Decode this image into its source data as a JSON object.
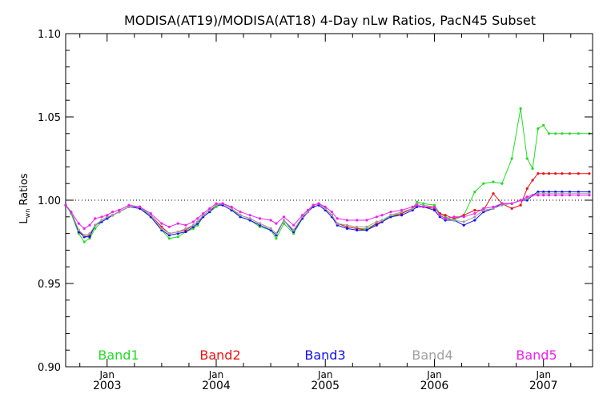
{
  "chart_data": {
    "type": "line",
    "title": "MODISA(AT19)/MODISA(AT18) 4-Day nLw Ratios, PacN45 Subset",
    "xlabel": "",
    "ylabel_main": "L",
    "ylabel_sub": "wn",
    "ylabel_rest": " Ratios",
    "ylim": [
      0.9,
      1.1
    ],
    "xlim": [
      2002.62,
      2007.45
    ],
    "reference_line": 1.0,
    "y_ticks": [
      {
        "value": 0.9,
        "label": "0.90"
      },
      {
        "value": 0.95,
        "label": "0.95"
      },
      {
        "value": 1.0,
        "label": "1.00"
      },
      {
        "value": 1.05,
        "label": "1.05"
      },
      {
        "value": 1.1,
        "label": "1.10"
      }
    ],
    "x_ticks": [
      {
        "value": 2003.0,
        "month": "Jan",
        "year": "2003"
      },
      {
        "value": 2004.0,
        "month": "Jan",
        "year": "2004"
      },
      {
        "value": 2005.0,
        "month": "Jan",
        "year": "2005"
      },
      {
        "value": 2006.0,
        "month": "Jan",
        "year": "2006"
      },
      {
        "value": 2007.0,
        "month": "Jan",
        "year": "2007"
      }
    ],
    "x": [
      2002.62,
      2002.67,
      2002.74,
      2002.79,
      2002.84,
      2002.89,
      2002.95,
      2003.0,
      2003.05,
      2003.11,
      2003.2,
      2003.3,
      2003.4,
      2003.5,
      2003.57,
      2003.65,
      2003.72,
      2003.79,
      2003.83,
      2003.88,
      2003.94,
      2004.0,
      2004.06,
      2004.14,
      2004.22,
      2004.31,
      2004.4,
      2004.5,
      2004.55,
      2004.62,
      2004.71,
      2004.79,
      2004.84,
      2004.89,
      2004.94,
      2005.0,
      2005.06,
      2005.11,
      2005.2,
      2005.29,
      2005.38,
      2005.47,
      2005.52,
      2005.6,
      2005.7,
      2005.8,
      2005.84,
      2005.9,
      2006.0,
      2006.05,
      2006.1,
      2006.18,
      2006.27,
      2006.37,
      2006.45,
      2006.54,
      2006.62,
      2006.71,
      2006.79,
      2006.85,
      2006.9,
      2006.95,
      2007.0,
      2007.05,
      2007.11,
      2007.17,
      2007.24,
      2007.32,
      2007.42
    ],
    "series": [
      {
        "name": "Band1",
        "color": "#22dd22",
        "values": [
          0.997,
          0.992,
          0.98,
          0.975,
          0.977,
          0.983,
          0.987,
          0.989,
          0.991,
          0.993,
          0.996,
          0.996,
          0.99,
          0.982,
          0.977,
          0.978,
          0.981,
          0.983,
          0.985,
          0.99,
          0.993,
          0.996,
          0.998,
          0.995,
          0.99,
          0.988,
          0.984,
          0.982,
          0.977,
          0.986,
          0.98,
          0.989,
          0.993,
          0.997,
          0.998,
          0.995,
          0.991,
          0.986,
          0.984,
          0.983,
          0.983,
          0.986,
          0.987,
          0.991,
          0.992,
          0.995,
          0.999,
          0.998,
          0.997,
          0.992,
          0.99,
          0.988,
          0.991,
          1.005,
          1.01,
          1.011,
          1.01,
          1.025,
          1.055,
          1.025,
          1.019,
          1.043,
          1.045,
          1.04,
          1.04,
          1.04,
          1.04,
          1.04,
          1.04
        ]
      },
      {
        "name": "Band2",
        "color": "#ee1111",
        "values": [
          0.997,
          0.993,
          0.982,
          0.978,
          0.979,
          0.985,
          0.988,
          0.99,
          0.991,
          0.993,
          0.996,
          0.996,
          0.991,
          0.984,
          0.98,
          0.981,
          0.982,
          0.985,
          0.987,
          0.991,
          0.994,
          0.997,
          0.998,
          0.995,
          0.991,
          0.989,
          0.986,
          0.983,
          0.98,
          0.988,
          0.982,
          0.99,
          0.993,
          0.997,
          0.998,
          0.995,
          0.991,
          0.986,
          0.984,
          0.983,
          0.982,
          0.986,
          0.987,
          0.99,
          0.992,
          0.995,
          0.997,
          0.996,
          0.995,
          0.992,
          0.991,
          0.989,
          0.991,
          0.994,
          0.994,
          1.004,
          0.998,
          0.995,
          0.997,
          1.007,
          1.012,
          1.016,
          1.016,
          1.016,
          1.016,
          1.016,
          1.016,
          1.016,
          1.016
        ]
      },
      {
        "name": "Band3",
        "color": "#1111ee",
        "values": [
          0.997,
          0.993,
          0.981,
          0.978,
          0.978,
          0.985,
          0.987,
          0.989,
          0.991,
          0.993,
          0.996,
          0.995,
          0.99,
          0.982,
          0.979,
          0.98,
          0.981,
          0.984,
          0.986,
          0.99,
          0.993,
          0.997,
          0.997,
          0.994,
          0.99,
          0.988,
          0.985,
          0.982,
          0.979,
          0.988,
          0.981,
          0.989,
          0.993,
          0.996,
          0.997,
          0.994,
          0.99,
          0.985,
          0.983,
          0.982,
          0.982,
          0.985,
          0.987,
          0.99,
          0.991,
          0.994,
          0.996,
          0.996,
          0.994,
          0.99,
          0.988,
          0.988,
          0.985,
          0.988,
          0.993,
          0.995,
          0.998,
          0.998,
          1.0,
          1.0,
          1.003,
          1.005,
          1.005,
          1.005,
          1.005,
          1.005,
          1.005,
          1.005,
          1.005
        ]
      },
      {
        "name": "Band4",
        "color": "#a0a0a0",
        "values": [
          0.997,
          0.993,
          0.982,
          0.979,
          0.98,
          0.985,
          0.988,
          0.99,
          0.991,
          0.993,
          0.996,
          0.996,
          0.991,
          0.983,
          0.98,
          0.981,
          0.983,
          0.985,
          0.987,
          0.991,
          0.994,
          0.997,
          0.998,
          0.995,
          0.991,
          0.989,
          0.986,
          0.983,
          0.98,
          0.988,
          0.982,
          0.99,
          0.993,
          0.997,
          0.998,
          0.995,
          0.991,
          0.986,
          0.985,
          0.984,
          0.984,
          0.987,
          0.988,
          0.991,
          0.993,
          0.995,
          0.998,
          0.997,
          0.996,
          0.991,
          0.989,
          0.988,
          0.987,
          0.99,
          0.994,
          0.995,
          0.997,
          0.998,
          1.0,
          1.001,
          1.003,
          1.004,
          1.004,
          1.004,
          1.004,
          1.004,
          1.004,
          1.004,
          1.004
        ]
      },
      {
        "name": "Band5",
        "color": "#ee22ee",
        "values": [
          0.997,
          0.993,
          0.986,
          0.983,
          0.985,
          0.989,
          0.99,
          0.991,
          0.993,
          0.994,
          0.997,
          0.996,
          0.992,
          0.986,
          0.984,
          0.986,
          0.985,
          0.987,
          0.989,
          0.992,
          0.995,
          0.998,
          0.998,
          0.996,
          0.993,
          0.991,
          0.989,
          0.988,
          0.986,
          0.99,
          0.985,
          0.991,
          0.994,
          0.997,
          0.998,
          0.996,
          0.993,
          0.989,
          0.988,
          0.988,
          0.988,
          0.99,
          0.991,
          0.993,
          0.994,
          0.996,
          0.997,
          0.996,
          0.996,
          0.991,
          0.989,
          0.99,
          0.99,
          0.992,
          0.995,
          0.996,
          0.998,
          0.998,
          1.0,
          1.002,
          1.003,
          1.003,
          1.003,
          1.003,
          1.003,
          1.003,
          1.003,
          1.003,
          1.003
        ]
      }
    ],
    "grid": false,
    "legend_position": "bottom-inside"
  }
}
